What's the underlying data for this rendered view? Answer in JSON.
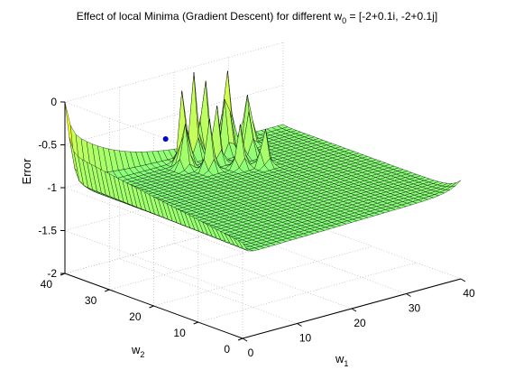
{
  "chart_data": {
    "type": "surface",
    "title_main": "Effect of local Minima (Gradient Descent) for different w",
    "title_sub": "0",
    "title_tail": " = [-2+0.1i, -2+0.1j]",
    "xlabel": "w",
    "xlabel_sub": "1",
    "ylabel": "w",
    "ylabel_sub": "2",
    "zlabel": "Error",
    "x_ticks": [
      "0",
      "10",
      "20",
      "30",
      "40"
    ],
    "y_ticks": [
      "0",
      "10",
      "20",
      "30",
      "40"
    ],
    "z_ticks": [
      "-2",
      "-1.5",
      "-1",
      "-0.5",
      "0"
    ],
    "xlim": [
      0,
      40
    ],
    "ylim": [
      0,
      40
    ],
    "zlim": [
      -2,
      0
    ],
    "grid": true,
    "colormap": "jet",
    "description_features": {
      "base_level": -1.0,
      "wall_along_w1_at_w2_40": "rises to about -0.3 at low w1",
      "spikes_near": "w1 20-30, w2 30-40 reaching about 0"
    }
  },
  "colors": {
    "background": "#ffffff",
    "axes": "#000000",
    "surface_low": "#7fff7f",
    "surface_high": "#ff8000",
    "marker": "#0000cc"
  }
}
